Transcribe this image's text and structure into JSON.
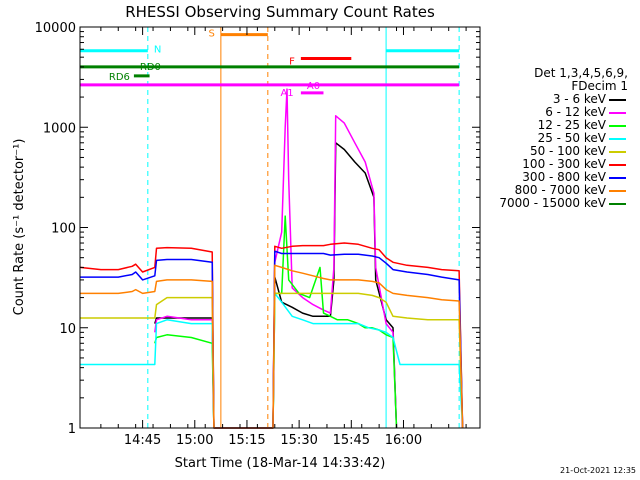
{
  "chart_data": {
    "type": "line",
    "title": "RHESSI Observing Summary Count Rates",
    "xlabel": "Start Time (18-Mar-14 14:33:42)",
    "ylabel": "Count Rate (s⁻¹ detector⁻¹)",
    "ylog": true,
    "ylim": [
      1,
      10000
    ],
    "xlim": [
      -6,
      109
    ],
    "x_ticks": [
      {
        "t": 12,
        "label": "14:45"
      },
      {
        "t": 27,
        "label": "15:00"
      },
      {
        "t": 42,
        "label": "15:15"
      },
      {
        "t": 57,
        "label": "15:30"
      },
      {
        "t": 72,
        "label": "15:45"
      },
      {
        "t": 87,
        "label": "16:00"
      }
    ],
    "y_ticks": [
      1,
      10,
      100,
      1000,
      10000
    ],
    "legend": {
      "header": [
        "Det 1,3,4,5,6,9,",
        "FDecim 1"
      ],
      "placement": "right"
    },
    "series": [
      {
        "name": "3 - 6 keV",
        "color": "#000000",
        "points": [
          [
            15.5,
            11
          ],
          [
            16,
            12.5
          ],
          [
            19,
            12.5
          ],
          [
            26,
            12.5
          ],
          [
            32,
            12.5
          ],
          [
            32.5,
            0
          ],
          [
            49.5,
            0
          ],
          [
            50,
            32
          ],
          [
            52,
            18
          ],
          [
            55,
            16
          ],
          [
            58,
            14
          ],
          [
            61,
            13
          ],
          [
            66,
            13
          ],
          [
            67,
            30
          ],
          [
            67.5,
            700
          ],
          [
            70,
            600
          ],
          [
            73,
            450
          ],
          [
            76,
            350
          ],
          [
            78.5,
            200
          ],
          [
            79,
            30
          ],
          [
            82,
            12
          ],
          [
            84,
            10
          ],
          [
            85,
            0
          ]
        ]
      },
      {
        "name": "6 - 12 keV",
        "color": "#ff00ff",
        "points": [
          [
            15.5,
            9
          ],
          [
            16,
            12
          ],
          [
            19,
            13
          ],
          [
            26,
            12
          ],
          [
            32,
            12
          ],
          [
            32.5,
            0
          ],
          [
            49.5,
            0
          ],
          [
            50,
            45
          ],
          [
            52,
            90
          ],
          [
            53,
            1000
          ],
          [
            53.5,
            2400
          ],
          [
            54,
            300
          ],
          [
            55,
            25
          ],
          [
            58,
            20
          ],
          [
            61,
            17
          ],
          [
            64,
            15
          ],
          [
            66,
            14
          ],
          [
            67,
            40
          ],
          [
            67.5,
            1300
          ],
          [
            70,
            1100
          ],
          [
            73,
            700
          ],
          [
            76,
            450
          ],
          [
            78.5,
            220
          ],
          [
            79,
            40
          ],
          [
            82,
            11
          ],
          [
            84,
            9
          ],
          [
            85,
            0
          ]
        ]
      },
      {
        "name": "12 - 25 keV",
        "color": "#00ff00",
        "points": [
          [
            15.5,
            7
          ],
          [
            16,
            8
          ],
          [
            19,
            8.5
          ],
          [
            26,
            8
          ],
          [
            32,
            7
          ],
          [
            32.5,
            0
          ],
          [
            49.5,
            0
          ],
          [
            50,
            22
          ],
          [
            52,
            22
          ],
          [
            53,
            130
          ],
          [
            54,
            30
          ],
          [
            57,
            22
          ],
          [
            60,
            20
          ],
          [
            63,
            40
          ],
          [
            64,
            14
          ],
          [
            66,
            13
          ],
          [
            68,
            12
          ],
          [
            71,
            12
          ],
          [
            74,
            11
          ],
          [
            76,
            10
          ],
          [
            78,
            10
          ],
          [
            80,
            9.5
          ],
          [
            82,
            8.5
          ],
          [
            84,
            8
          ],
          [
            85,
            0
          ]
        ]
      },
      {
        "name": "25 - 50 keV",
        "color": "#00ffff",
        "points": [
          [
            -6,
            4.3
          ],
          [
            0,
            4.3
          ],
          [
            5,
            4.3
          ],
          [
            9,
            4.3
          ],
          [
            10,
            4.3
          ],
          [
            13,
            4.3
          ],
          [
            15.5,
            4.3
          ],
          [
            16,
            11
          ],
          [
            19,
            12
          ],
          [
            26,
            11
          ],
          [
            32,
            11
          ],
          [
            32.5,
            0
          ],
          [
            49.5,
            0
          ],
          [
            50,
            22
          ],
          [
            52,
            18
          ],
          [
            55,
            13
          ],
          [
            58,
            12
          ],
          [
            61,
            11
          ],
          [
            64,
            11
          ],
          [
            66,
            11
          ],
          [
            68,
            11
          ],
          [
            71,
            11
          ],
          [
            74,
            11
          ],
          [
            77,
            10
          ],
          [
            80,
            9.5
          ],
          [
            82,
            9
          ],
          [
            84,
            8
          ],
          [
            86,
            4.3
          ],
          [
            92,
            4.3
          ],
          [
            98,
            4.3
          ],
          [
            103,
            4.3
          ],
          [
            104,
            0
          ]
        ]
      },
      {
        "name": "50 - 100 keV",
        "color": "#cccc00",
        "points": [
          [
            -6,
            12.5
          ],
          [
            0,
            12.5
          ],
          [
            5,
            12.5
          ],
          [
            9,
            12.5
          ],
          [
            10,
            12.5
          ],
          [
            15.5,
            12.5
          ],
          [
            16,
            17
          ],
          [
            19,
            20
          ],
          [
            26,
            20
          ],
          [
            32,
            20
          ],
          [
            32.5,
            0
          ],
          [
            49.5,
            0
          ],
          [
            50,
            22
          ],
          [
            52,
            22
          ],
          [
            55,
            22
          ],
          [
            58,
            22
          ],
          [
            61,
            22
          ],
          [
            64,
            22
          ],
          [
            66,
            22
          ],
          [
            70,
            22
          ],
          [
            74,
            22
          ],
          [
            78,
            21
          ],
          [
            80,
            20
          ],
          [
            82,
            18
          ],
          [
            84,
            13
          ],
          [
            88,
            12.5
          ],
          [
            94,
            12
          ],
          [
            98,
            12
          ],
          [
            103,
            12
          ],
          [
            104,
            0
          ]
        ]
      },
      {
        "name": "100 - 300 keV",
        "color": "#ff0000",
        "points": [
          [
            -6,
            40
          ],
          [
            0,
            38
          ],
          [
            5,
            38
          ],
          [
            9,
            41
          ],
          [
            10,
            43
          ],
          [
            12,
            36
          ],
          [
            15.5,
            40
          ],
          [
            16,
            62
          ],
          [
            19,
            63
          ],
          [
            26,
            62
          ],
          [
            32,
            57
          ],
          [
            32.5,
            0
          ],
          [
            49.5,
            0
          ],
          [
            50,
            65
          ],
          [
            52,
            62
          ],
          [
            55,
            65
          ],
          [
            58,
            66
          ],
          [
            61,
            66
          ],
          [
            64,
            66
          ],
          [
            66,
            68
          ],
          [
            70,
            70
          ],
          [
            74,
            68
          ],
          [
            78,
            62
          ],
          [
            80,
            60
          ],
          [
            82,
            50
          ],
          [
            84,
            45
          ],
          [
            88,
            42
          ],
          [
            94,
            40
          ],
          [
            98,
            38
          ],
          [
            103,
            37
          ],
          [
            104,
            0
          ]
        ]
      },
      {
        "name": "300 - 800 keV",
        "color": "#0000ff",
        "points": [
          [
            -6,
            32
          ],
          [
            0,
            32
          ],
          [
            5,
            32
          ],
          [
            9,
            34
          ],
          [
            10,
            36
          ],
          [
            12,
            30
          ],
          [
            15.5,
            33
          ],
          [
            16,
            47
          ],
          [
            19,
            48
          ],
          [
            26,
            48
          ],
          [
            32,
            45
          ],
          [
            32.5,
            0
          ],
          [
            49.5,
            0
          ],
          [
            50,
            58
          ],
          [
            52,
            55
          ],
          [
            55,
            55
          ],
          [
            58,
            55
          ],
          [
            61,
            55
          ],
          [
            64,
            55
          ],
          [
            66,
            53
          ],
          [
            70,
            54
          ],
          [
            74,
            54
          ],
          [
            78,
            52
          ],
          [
            80,
            50
          ],
          [
            82,
            44
          ],
          [
            84,
            38
          ],
          [
            88,
            36
          ],
          [
            94,
            34
          ],
          [
            98,
            32
          ],
          [
            103,
            30
          ],
          [
            104,
            0
          ]
        ]
      },
      {
        "name": "800 - 7000 keV",
        "color": "#ff8000",
        "points": [
          [
            -6,
            22
          ],
          [
            0,
            22
          ],
          [
            5,
            22
          ],
          [
            9,
            23
          ],
          [
            10,
            24
          ],
          [
            12,
            22
          ],
          [
            15.5,
            23
          ],
          [
            16,
            29
          ],
          [
            19,
            30
          ],
          [
            26,
            30
          ],
          [
            32,
            29
          ],
          [
            32.5,
            0
          ],
          [
            49.5,
            0
          ],
          [
            50,
            42
          ],
          [
            52,
            40
          ],
          [
            55,
            37
          ],
          [
            58,
            35
          ],
          [
            61,
            33
          ],
          [
            64,
            31
          ],
          [
            66,
            30
          ],
          [
            70,
            30
          ],
          [
            74,
            30
          ],
          [
            78,
            29
          ],
          [
            80,
            28
          ],
          [
            82,
            24
          ],
          [
            84,
            22
          ],
          [
            88,
            21
          ],
          [
            94,
            20
          ],
          [
            98,
            19
          ],
          [
            103,
            18.5
          ],
          [
            104,
            0
          ]
        ]
      },
      {
        "name": "7000 - 15000 keV",
        "color": "#008000",
        "points": []
      }
    ],
    "top_bars": [
      {
        "label": "N",
        "color": "#00ffff",
        "segments": [
          [
            -6,
            13.5
          ],
          [
            82,
            103
          ]
        ],
        "y": 5800
      },
      {
        "label": "S",
        "color": "#ff8000",
        "segments": [
          [
            34.5,
            48
          ]
        ],
        "y": 8400
      },
      {
        "label": "F",
        "color": "#ff0000",
        "segments": [
          [
            57.5,
            72
          ]
        ],
        "y": 4850
      },
      {
        "label": "RD0",
        "color": "#008000",
        "segments": [
          [
            -6,
            103
          ]
        ],
        "y": 4000
      },
      {
        "label": "RD6",
        "color": "#008000",
        "segments": [
          [
            9.5,
            14
          ]
        ],
        "y": 3250
      },
      {
        "label": "A1",
        "color": "#ff00ff",
        "segments": [
          [
            -6,
            103
          ]
        ],
        "y": 2650
      },
      {
        "label": "A0",
        "color": "#ff00ff",
        "segments": [
          [
            57.5,
            64
          ]
        ],
        "y": 2200
      }
    ],
    "vlines": [
      {
        "t": -6,
        "color": "#00ffff",
        "style": "solid"
      },
      {
        "t": 13.5,
        "color": "#00ffff",
        "style": "dashed"
      },
      {
        "t": 34.5,
        "color": "#ff8000",
        "style": "solid"
      },
      {
        "t": 48,
        "color": "#ff8000",
        "style": "dashed"
      },
      {
        "t": 82,
        "color": "#00ffff",
        "style": "solid"
      },
      {
        "t": 103,
        "color": "#00ffff",
        "style": "dashed"
      }
    ],
    "timestamp": "21-Oct-2021 12:35"
  }
}
